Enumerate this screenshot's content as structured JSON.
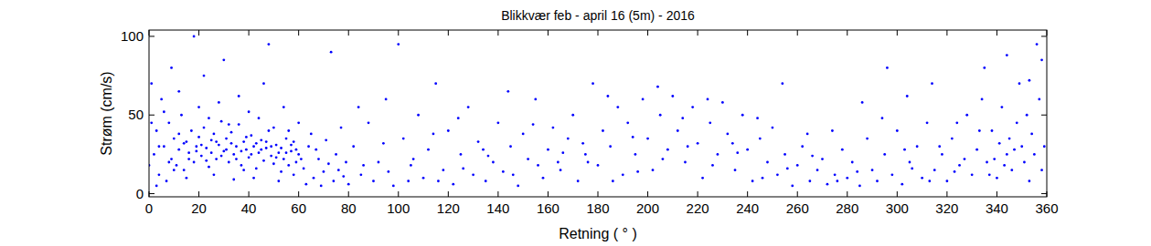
{
  "chart_data": {
    "type": "scatter",
    "title": "Blikkvær feb - april 16 (5m) - 2016",
    "x_label": "Retning ( ° )",
    "y_label": "Strøm (cm/s)",
    "color": "#0000ff",
    "marker": "dot",
    "grid": false,
    "xlim": [
      0,
      360
    ],
    "xticks": [
      0,
      20,
      40,
      60,
      80,
      100,
      120,
      140,
      160,
      180,
      200,
      220,
      240,
      260,
      280,
      300,
      320,
      340,
      360
    ],
    "ylim": [
      -2,
      104
    ],
    "yticks": [
      0,
      50,
      100
    ],
    "x": [
      2,
      3,
      4,
      5,
      6,
      7,
      8,
      9,
      10,
      11,
      12,
      13,
      14,
      15,
      16,
      17,
      18,
      19,
      20,
      21,
      22,
      23,
      24,
      25,
      26,
      27,
      28,
      29,
      30,
      31,
      32,
      33,
      34,
      35,
      36,
      37,
      38,
      39,
      40,
      41,
      42,
      43,
      44,
      45,
      46,
      47,
      48,
      49,
      50,
      51,
      52,
      53,
      54,
      55,
      56,
      57,
      58,
      59,
      60,
      62,
      64,
      66,
      68,
      70,
      72,
      74,
      76,
      78,
      80,
      1,
      3,
      6,
      9,
      12,
      15,
      18,
      20,
      22,
      24,
      26,
      28,
      30,
      32,
      34,
      36,
      38,
      40,
      42,
      44,
      46,
      48,
      50,
      52,
      54,
      56,
      58,
      60,
      63,
      65,
      67,
      69,
      71,
      73,
      75,
      77,
      79,
      14,
      16,
      19,
      21,
      23,
      25,
      27,
      29,
      31,
      33,
      35,
      37,
      39,
      41,
      43,
      45,
      47,
      49,
      51,
      53,
      55,
      57,
      59,
      61,
      8,
      10,
      12,
      4,
      0,
      1,
      82,
      85,
      88,
      90,
      92,
      95,
      98,
      100,
      102,
      105,
      108,
      110,
      112,
      115,
      118,
      120,
      122,
      125,
      128,
      130,
      132,
      135,
      138,
      140,
      142,
      145,
      148,
      150,
      152,
      155,
      158,
      160,
      162,
      165,
      168,
      170,
      172,
      175,
      178,
      180,
      182,
      185,
      188,
      190,
      192,
      195,
      198,
      200,
      202,
      205,
      208,
      210,
      212,
      215,
      218,
      220,
      222,
      225,
      228,
      230,
      232,
      235,
      238,
      240,
      242,
      245,
      248,
      250,
      252,
      255,
      258,
      260,
      262,
      265,
      268,
      270,
      272,
      275,
      278,
      280,
      282,
      285,
      288,
      290,
      292,
      295,
      296,
      298,
      300,
      302,
      305,
      308,
      310,
      312,
      315,
      318,
      320,
      322,
      325,
      328,
      330,
      332,
      334,
      336,
      338,
      340,
      342,
      344,
      345,
      346,
      348,
      349,
      350,
      351,
      352,
      353,
      354,
      355,
      356,
      357,
      358,
      359,
      341,
      343,
      347,
      339,
      337,
      333,
      327,
      323,
      317,
      313,
      306,
      303,
      284,
      276,
      266,
      256,
      246,
      236,
      226,
      216,
      206,
      196,
      186,
      176,
      166,
      156,
      146,
      136,
      126,
      116,
      106,
      96,
      86,
      84,
      94,
      104,
      114,
      124,
      134,
      144,
      154,
      164,
      174,
      184,
      194,
      204,
      214,
      224,
      234,
      244,
      254,
      264,
      274,
      286,
      294,
      304,
      314,
      324,
      335,
      344,
      353,
      358
    ],
    "values": [
      25,
      40,
      12,
      60,
      30,
      8,
      45,
      22,
      35,
      18,
      28,
      50,
      15,
      33,
      26,
      40,
      20,
      30,
      36,
      24,
      42,
      29,
      17,
      34,
      38,
      22,
      31,
      46,
      27,
      35,
      20,
      39,
      25,
      30,
      44,
      18,
      33,
      28,
      23,
      37,
      30,
      16,
      26,
      34,
      21,
      29,
      40,
      24,
      19,
      31,
      26,
      14,
      22,
      35,
      18,
      27,
      12,
      20,
      25,
      16,
      30,
      10,
      22,
      14,
      19,
      8,
      15,
      11,
      6,
      70,
      5,
      52,
      80,
      65,
      10,
      100,
      55,
      75,
      48,
      12,
      58,
      85,
      44,
      9,
      62,
      15,
      52,
      10,
      48,
      70,
      95,
      42,
      8,
      55,
      40,
      33,
      45,
      6,
      38,
      28,
      5,
      34,
      90,
      25,
      42,
      20,
      32,
      22,
      27,
      31,
      21,
      26,
      33,
      24,
      28,
      32,
      22,
      27,
      36,
      25,
      32,
      28,
      33,
      30,
      23,
      29,
      26,
      31,
      28,
      22,
      20,
      15,
      38,
      30,
      18,
      45,
      30,
      12,
      45,
      8,
      20,
      60,
      5,
      95,
      35,
      18,
      50,
      10,
      28,
      70,
      15,
      40,
      6,
      25,
      55,
      12,
      33,
      8,
      20,
      45,
      14,
      30,
      5,
      38,
      22,
      60,
      10,
      28,
      42,
      15,
      35,
      50,
      8,
      25,
      70,
      18,
      40,
      30,
      55,
      12,
      45,
      25,
      60,
      35,
      15,
      50,
      28,
      62,
      40,
      20,
      55,
      32,
      10,
      45,
      25,
      58,
      38,
      15,
      50,
      28,
      8,
      35,
      20,
      42,
      12,
      25,
      5,
      18,
      30,
      8,
      15,
      22,
      6,
      12,
      28,
      10,
      20,
      5,
      35,
      15,
      8,
      25,
      80,
      12,
      40,
      6,
      20,
      30,
      10,
      45,
      15,
      25,
      8,
      35,
      18,
      50,
      12,
      28,
      60,
      20,
      40,
      10,
      55,
      25,
      35,
      15,
      45,
      70,
      30,
      20,
      50,
      8,
      38,
      25,
      95,
      60,
      15,
      30,
      32,
      18,
      28,
      22,
      12,
      40,
      22,
      14,
      30,
      8,
      16,
      28,
      14,
      8,
      24,
      16,
      10,
      26,
      18,
      30,
      22,
      14,
      8,
      20,
      26,
      18,
      12,
      24,
      16,
      8,
      22,
      14,
      18,
      55,
      32,
      8,
      38,
      48,
      28,
      65,
      44,
      20,
      32,
      62,
      36,
      68,
      48,
      60,
      32,
      48,
      70,
      38,
      40,
      58,
      48,
      62,
      70,
      45,
      80,
      88,
      72,
      85
    ]
  }
}
